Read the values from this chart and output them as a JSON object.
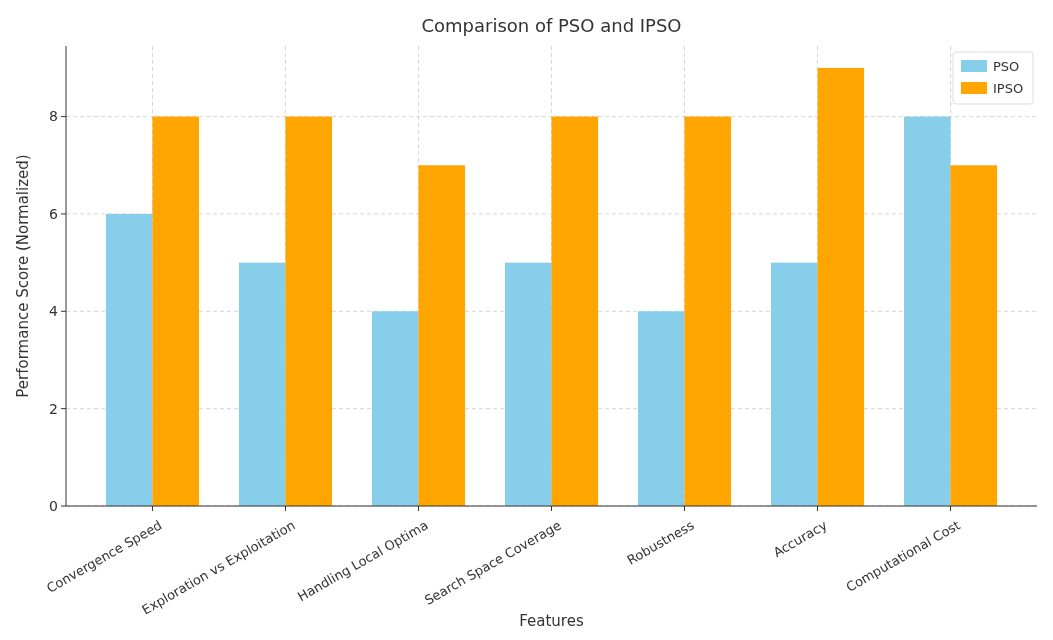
{
  "chart_data": {
    "type": "bar",
    "title": "Comparison of PSO and IPSO",
    "xlabel": "Features",
    "ylabel": "Performance Score (Normalized)",
    "categories": [
      "Convergence Speed",
      "Exploration vs Exploitation",
      "Handling Local Optima",
      "Search Space Coverage",
      "Robustness",
      "Accuracy",
      "Computational Cost"
    ],
    "series": [
      {
        "name": "PSO",
        "color": "#87ceeb",
        "values": [
          6,
          5,
          4,
          5,
          4,
          5,
          8
        ]
      },
      {
        "name": "IPSO",
        "color": "#ffa500",
        "values": [
          8,
          8,
          7,
          8,
          8,
          9,
          7
        ]
      }
    ],
    "ylim": [
      0,
      9.45
    ],
    "yticks": [
      0,
      2,
      4,
      6,
      8
    ],
    "grid": true,
    "legend": "top right"
  }
}
